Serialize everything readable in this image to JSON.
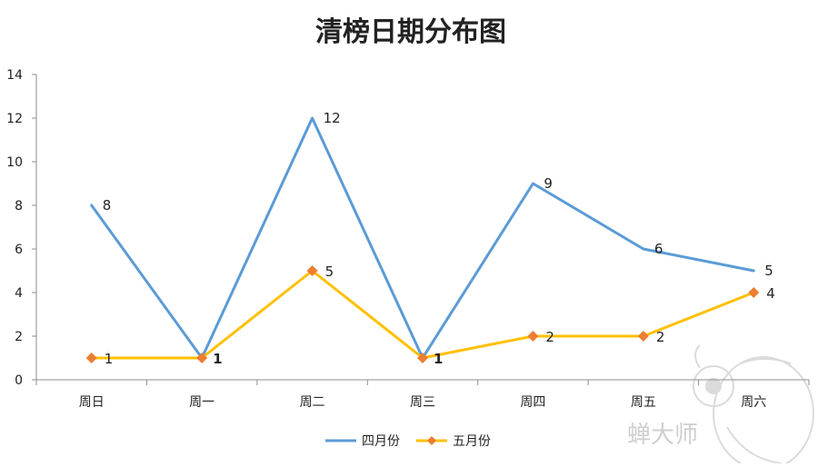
{
  "chart_data": {
    "type": "line",
    "title": "清榜日期分布图",
    "categories": [
      "周日",
      "周一",
      "周二",
      "周三",
      "周四",
      "周五",
      "周六"
    ],
    "ylim": [
      0,
      14
    ],
    "yticks": [
      0,
      2,
      4,
      6,
      8,
      10,
      12,
      14
    ],
    "ytick_labels": [
      "0",
      "2",
      "4",
      "6",
      "8",
      "10",
      "12",
      "14"
    ],
    "grid": false,
    "legend_position": "bottom",
    "series": [
      {
        "name": "四月份",
        "color": "#5b9bd5",
        "marker": "none",
        "values": [
          8,
          1,
          12,
          1,
          9,
          6,
          5
        ],
        "labels": [
          "8",
          "1",
          "12",
          "1",
          "9",
          "6",
          "5"
        ]
      },
      {
        "name": "五月份",
        "color": "#ffc000",
        "marker": "diamond",
        "marker_color": "#ed7d31",
        "values": [
          1,
          1,
          5,
          1,
          2,
          2,
          4
        ],
        "labels": [
          "1",
          "",
          "5",
          "",
          "2",
          "2",
          "4"
        ]
      }
    ]
  },
  "watermark": {
    "text": "蝉大师",
    "icon": "cicada-icon"
  }
}
